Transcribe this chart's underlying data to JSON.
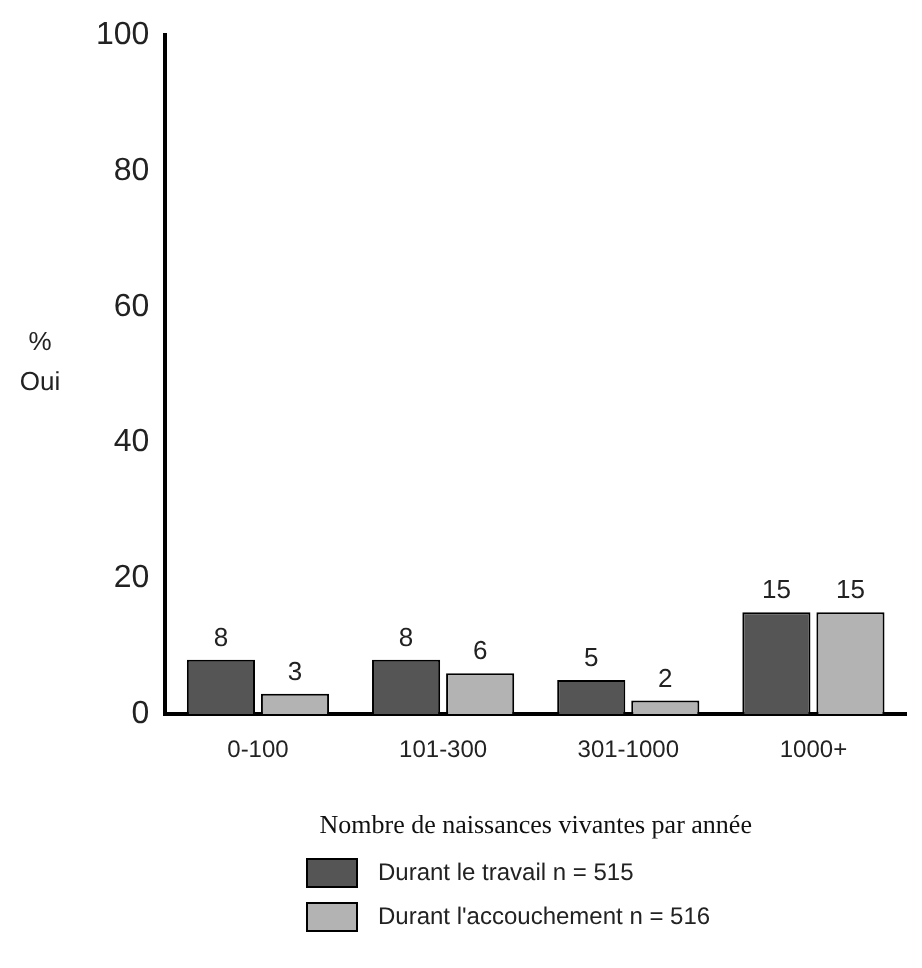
{
  "chart_data": {
    "type": "bar",
    "xlabel": "Nombre de naissances vivantes par année",
    "ylabel": "% Oui",
    "categories": [
      "0-100",
      "101-300",
      "301-1000",
      "1000+"
    ],
    "series": [
      {
        "name": "Durant le travail n = 515",
        "color": "#555555",
        "values": [
          8,
          8,
          5,
          15
        ]
      },
      {
        "name": "Durant l'accouchement n = 516",
        "color": "#b3b3b3",
        "values": [
          3,
          6,
          2,
          15
        ]
      }
    ],
    "ylim": [
      0,
      100
    ],
    "yticks": [
      0,
      20,
      40,
      60,
      80,
      100
    ],
    "grid": false,
    "legend": "bottom",
    "data_labels": true
  }
}
